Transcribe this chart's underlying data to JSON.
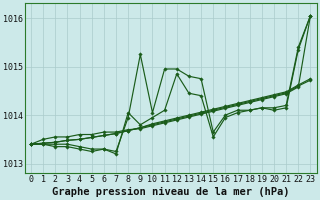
{
  "title": "Graphe pression niveau de la mer (hPa)",
  "x_labels": [
    "0",
    "1",
    "2",
    "3",
    "4",
    "5",
    "6",
    "7",
    "8",
    "9",
    "10",
    "11",
    "12",
    "13",
    "14",
    "15",
    "16",
    "17",
    "18",
    "19",
    "20",
    "21",
    "22",
    "23"
  ],
  "ylim": [
    1012.8,
    1016.3
  ],
  "yticks": [
    1013,
    1014,
    1015,
    1016
  ],
  "background_color": "#cce9e9",
  "grid_color": "#aacccc",
  "line_color": "#1a5c1a",
  "series": {
    "line1": [
      1013.4,
      1013.4,
      1013.4,
      1013.4,
      1013.35,
      1013.3,
      1013.3,
      1013.25,
      1013.95,
      1015.25,
      1014.05,
      1014.95,
      1014.95,
      1014.8,
      1014.75,
      1013.65,
      1014.0,
      1014.1,
      1014.1,
      1014.15,
      1014.15,
      1014.2,
      1015.4,
      1016.05
    ],
    "line2": [
      1013.4,
      1013.4,
      1013.35,
      1013.35,
      1013.3,
      1013.25,
      1013.3,
      1013.2,
      1014.05,
      1013.8,
      1013.95,
      1014.1,
      1014.85,
      1014.45,
      1014.4,
      1013.55,
      1013.95,
      1014.05,
      1014.1,
      1014.15,
      1014.1,
      1014.15,
      1015.35,
      1016.05
    ],
    "line3": [
      1013.4,
      1013.42,
      1013.44,
      1013.48,
      1013.5,
      1013.54,
      1013.58,
      1013.62,
      1013.68,
      1013.74,
      1013.8,
      1013.86,
      1013.92,
      1013.98,
      1014.04,
      1014.1,
      1014.16,
      1014.22,
      1014.28,
      1014.34,
      1014.4,
      1014.46,
      1014.6,
      1014.72
    ],
    "line4": [
      1013.4,
      1013.42,
      1013.44,
      1013.48,
      1013.5,
      1013.54,
      1013.58,
      1013.62,
      1013.68,
      1013.74,
      1013.82,
      1013.88,
      1013.94,
      1014.0,
      1014.06,
      1014.12,
      1014.18,
      1014.24,
      1014.3,
      1014.36,
      1014.42,
      1014.48,
      1014.62,
      1014.75
    ],
    "line5": [
      1013.4,
      1013.5,
      1013.55,
      1013.55,
      1013.6,
      1013.6,
      1013.65,
      1013.65,
      1013.7,
      1013.72,
      1013.78,
      1013.84,
      1013.9,
      1013.96,
      1014.02,
      1014.08,
      1014.14,
      1014.2,
      1014.26,
      1014.32,
      1014.38,
      1014.44,
      1014.58,
      1016.05
    ]
  },
  "figsize": [
    3.2,
    2.0
  ],
  "dpi": 100,
  "title_fontsize": 7.5,
  "tick_fontsize": 6.0,
  "marker": "D",
  "markersize": 1.8,
  "linewidth": 0.85
}
